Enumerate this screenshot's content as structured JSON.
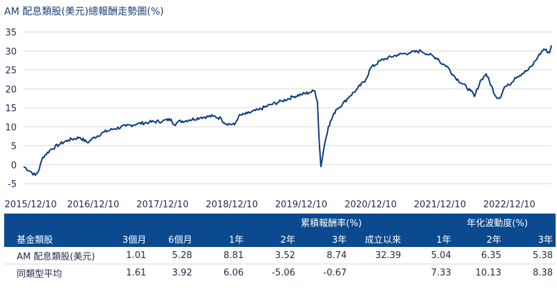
{
  "chart_data": {
    "type": "line",
    "title": "AM 配息類股(美元)總報酬走勢圖(%)",
    "xlabel": "",
    "ylabel": "",
    "ylim": [
      -5,
      35
    ],
    "yticks": [
      -5,
      0,
      5,
      10,
      15,
      20,
      25,
      30,
      35
    ],
    "xlim": [
      "2015-12-10",
      "2023-07-20"
    ],
    "xticks": [
      "2015-12-10",
      "2016-12-10",
      "2017-12-10",
      "2018-12-10",
      "2019-12-10",
      "2020-12-10",
      "2021-12-10",
      "2022-12-10"
    ],
    "xtick_labels": [
      "2015/12/10",
      "2016/12/10",
      "2017/12/10",
      "2018/12/10",
      "2019/12/10",
      "2020/12/10",
      "2021/12/10",
      "2022/12/10"
    ],
    "grid": "horizontal",
    "line_color": "#0b3a7e",
    "series": [
      {
        "x": [
          "2015-12-10",
          "2016-01-15",
          "2016-02-10",
          "2016-02-25",
          "2016-03-20",
          "2016-05-01",
          "2016-06-20",
          "2016-08-01",
          "2016-10-01",
          "2016-11-10",
          "2016-12-10",
          "2017-02-01",
          "2017-04-01",
          "2017-06-01",
          "2017-08-01",
          "2017-10-01",
          "2017-12-10",
          "2018-01-25",
          "2018-02-10",
          "2018-03-01",
          "2018-05-01",
          "2018-07-01",
          "2018-09-01",
          "2018-10-15",
          "2018-11-01",
          "2018-12-24",
          "2019-01-15",
          "2019-03-01",
          "2019-05-01",
          "2019-07-01",
          "2019-09-01",
          "2019-11-01",
          "2019-12-10",
          "2020-01-20",
          "2020-02-20",
          "2020-03-05",
          "2020-03-15",
          "2020-03-23",
          "2020-04-10",
          "2020-05-01",
          "2020-06-10",
          "2020-07-15",
          "2020-08-20",
          "2020-10-01",
          "2020-11-15",
          "2020-12-10",
          "2021-02-01",
          "2021-03-01",
          "2021-05-01",
          "2021-07-01",
          "2021-09-01",
          "2021-10-15",
          "2021-12-01",
          "2021-12-10",
          "2022-01-15",
          "2022-03-01",
          "2022-05-20",
          "2022-06-10",
          "2022-07-10",
          "2022-08-10",
          "2022-09-30",
          "2022-10-20",
          "2022-11-15",
          "2022-12-10",
          "2023-01-10",
          "2023-02-15",
          "2023-03-20",
          "2023-04-15",
          "2023-05-10",
          "2023-06-10",
          "2023-07-10",
          "2023-07-20"
        ],
        "y": [
          -0.5,
          -1.8,
          -2.8,
          -1.8,
          2.0,
          4.0,
          5.5,
          6.5,
          7.2,
          5.8,
          7.0,
          8.5,
          9.5,
          10.2,
          10.8,
          11.2,
          11.5,
          12.0,
          10.5,
          11.3,
          11.8,
          12.5,
          12.8,
          12.2,
          11.0,
          10.5,
          12.8,
          13.5,
          14.5,
          15.8,
          16.8,
          18.0,
          18.5,
          19.0,
          19.5,
          16.5,
          5.5,
          -0.5,
          5.0,
          10.0,
          14.5,
          16.0,
          18.0,
          20.0,
          22.5,
          25.5,
          27.5,
          28.0,
          29.0,
          29.5,
          30.0,
          29.0,
          28.0,
          27.0,
          26.0,
          23.0,
          19.5,
          18.0,
          22.0,
          24.0,
          18.0,
          17.5,
          20.5,
          21.0,
          23.0,
          24.0,
          25.0,
          26.5,
          28.5,
          30.5,
          29.5,
          31.5
        ]
      }
    ]
  },
  "table": {
    "group_headers": {
      "cumulative": "累積報酬率(%)",
      "volatility": "年化波動度(%)"
    },
    "columns": [
      "基金類股",
      "3個月",
      "6個月",
      "1年",
      "2年",
      "3年",
      "成立以來",
      "1年",
      "2年",
      "3年"
    ],
    "rows": [
      {
        "name": "AM  配息類股(美元)",
        "values": [
          "1.01",
          "5.28",
          "8.81",
          "3.52",
          "8.74",
          "32.39",
          "5.04",
          "6.35",
          "5.38"
        ]
      },
      {
        "name": "同類型平均",
        "values": [
          "1.61",
          "3.92",
          "6.06",
          "-5.06",
          "-0.67",
          "",
          "7.33",
          "10.13",
          "8.38"
        ]
      }
    ]
  }
}
